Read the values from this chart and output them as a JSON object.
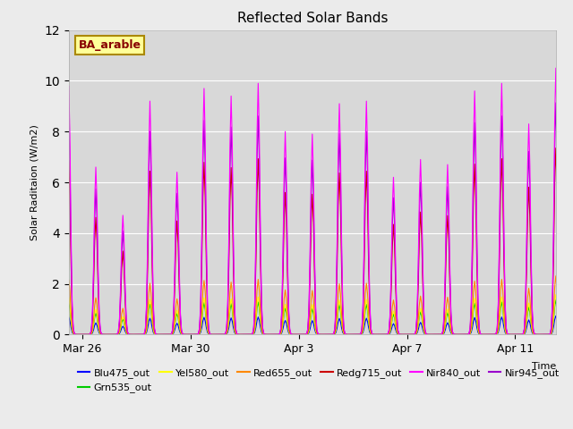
{
  "title": "Reflected Solar Bands",
  "ylabel": "Solar Raditaion (W/m2)",
  "xlabel": "Time",
  "ylim": [
    0,
    12
  ],
  "yticks": [
    0,
    2,
    4,
    6,
    8,
    10,
    12
  ],
  "xtick_labels": [
    "Mar 26",
    "Mar 30",
    "Apr 3",
    "Apr 7",
    "Apr 11"
  ],
  "background_color": "#ebebeb",
  "plot_bg_color": "#d8d8d8",
  "colors": {
    "Blu475_out": "#0000ff",
    "Grn535_out": "#00cc00",
    "Yel580_out": "#ffff00",
    "Red655_out": "#ff8800",
    "Redg715_out": "#cc0000",
    "Nir840_out": "#ff00ff",
    "Nir945_out": "#9900cc"
  },
  "scales": {
    "Blu475_out": 0.07,
    "Grn535_out": 0.13,
    "Yel580_out": 0.15,
    "Red655_out": 0.22,
    "Redg715_out": 0.7,
    "Nir840_out": 1.0,
    "Nir945_out": 0.87
  },
  "nir840_peaks": [
    9.8,
    6.6,
    4.7,
    9.2,
    6.4,
    9.7,
    9.4,
    9.9,
    8.0,
    7.9,
    9.1,
    9.2,
    6.2,
    6.9,
    6.7,
    9.6,
    9.9,
    8.3,
    10.5
  ],
  "legend_box_color": "#ffff99",
  "legend_box_edge": "#aa8800",
  "legend_label": "BA_arable",
  "legend_label_color": "#880000",
  "series_order": [
    "Blu475_out",
    "Grn535_out",
    "Yel580_out",
    "Red655_out",
    "Redg715_out",
    "Nir840_out",
    "Nir945_out"
  ],
  "plot_order": [
    "Blu475_out",
    "Grn535_out",
    "Yel580_out",
    "Red655_out",
    "Redg715_out",
    "Nir945_out",
    "Nir840_out"
  ]
}
